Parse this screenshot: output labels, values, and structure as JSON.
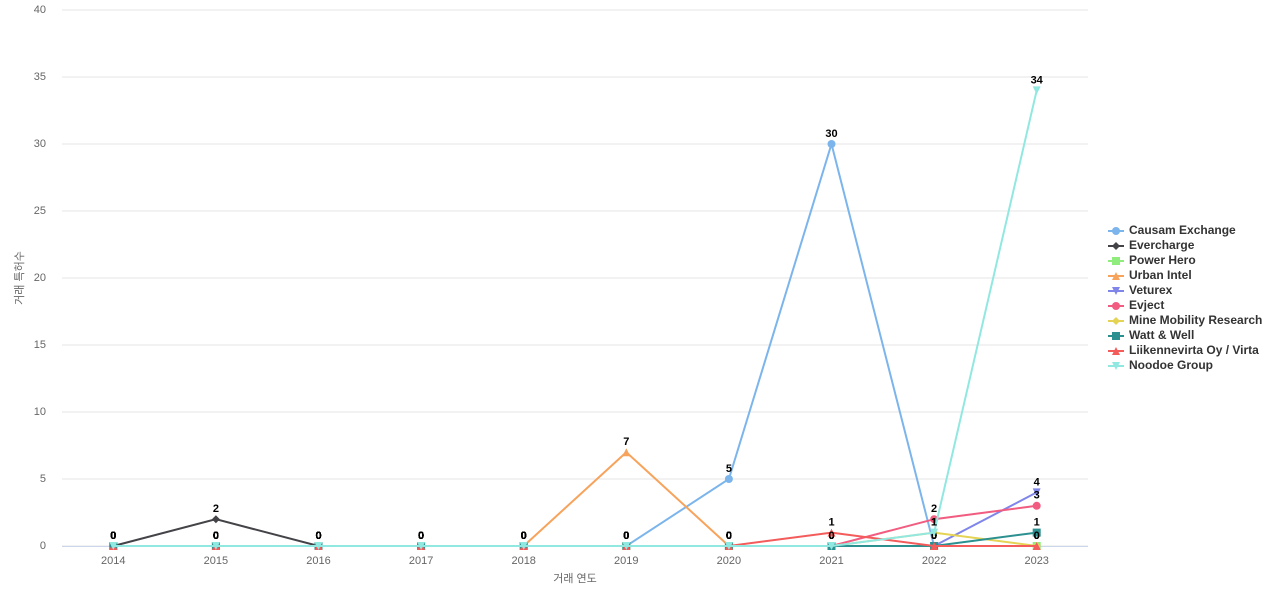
{
  "chart_data": {
    "type": "line",
    "x_label": "거래 연도",
    "y_label": "거래 특허수",
    "categories": [
      "2014",
      "2015",
      "2016",
      "2017",
      "2018",
      "2019",
      "2020",
      "2021",
      "2022",
      "2023"
    ],
    "ylim": [
      0,
      40
    ],
    "yticks": [
      0,
      5,
      10,
      15,
      20,
      25,
      30,
      35,
      40
    ],
    "grid": true,
    "legend": "right",
    "series": [
      {
        "name": "Causam Exchange",
        "color": "#7cb5ec",
        "marker": "circle",
        "values": [
          0,
          0,
          0,
          0,
          0,
          0,
          5,
          30,
          0,
          0
        ]
      },
      {
        "name": "Evercharge",
        "color": "#434348",
        "marker": "diamond",
        "values": [
          0,
          2,
          0,
          0,
          0,
          0,
          0,
          0,
          0,
          0
        ]
      },
      {
        "name": "Power Hero",
        "color": "#90ed7d",
        "marker": "square",
        "values": [
          0,
          0,
          0,
          0,
          0,
          0,
          0,
          0,
          0,
          0
        ]
      },
      {
        "name": "Urban Intel",
        "color": "#f7a35c",
        "marker": "triangle",
        "values": [
          0,
          0,
          0,
          0,
          0,
          7,
          0,
          0,
          0,
          0
        ]
      },
      {
        "name": "Veturex",
        "color": "#8085e9",
        "marker": "triangle-down",
        "values": [
          0,
          0,
          0,
          0,
          0,
          0,
          0,
          0,
          0,
          4
        ]
      },
      {
        "name": "Evject",
        "color": "#f15c80",
        "marker": "circle",
        "values": [
          0,
          0,
          0,
          0,
          0,
          0,
          0,
          0,
          2,
          3
        ]
      },
      {
        "name": "Mine Mobility Research",
        "color": "#e4d354",
        "marker": "diamond",
        "values": [
          0,
          0,
          0,
          0,
          0,
          0,
          0,
          0,
          1,
          0
        ]
      },
      {
        "name": "Watt & Well",
        "color": "#2b908f",
        "marker": "square",
        "values": [
          0,
          0,
          0,
          0,
          0,
          0,
          0,
          0,
          0,
          1
        ]
      },
      {
        "name": "Liikennevirta Oy / Virta",
        "color": "#f45b5b",
        "marker": "triangle",
        "values": [
          0,
          0,
          0,
          0,
          0,
          0,
          0,
          1,
          0,
          0
        ]
      },
      {
        "name": "Noodoe Group",
        "color": "#91e8e1",
        "marker": "triangle-down",
        "values": [
          0,
          0,
          0,
          0,
          0,
          0,
          0,
          0,
          1,
          34
        ]
      }
    ]
  }
}
